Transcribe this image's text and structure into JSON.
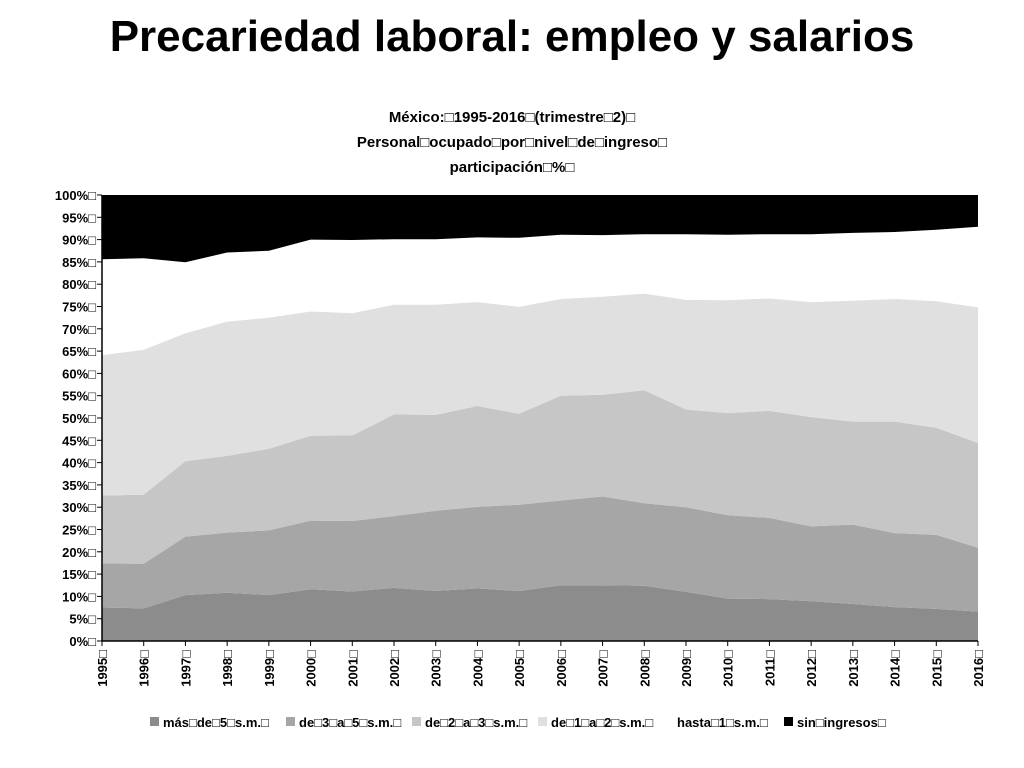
{
  "slide": {
    "title": "Precariedad laboral: empleo y salarios"
  },
  "chart_data": {
    "type": "area",
    "stacked": "percent",
    "title_lines": [
      "México:□1995-2016□(trimestre□2)□",
      "Personal□ocupado□por□nivel□de□ingreso□",
      "participación□%□"
    ],
    "x": [
      "1995□",
      "1996□",
      "1997□",
      "1998□",
      "1999□",
      "2000□",
      "2001□",
      "2002□",
      "2003□",
      "2004□",
      "2005□",
      "2006□",
      "2007□",
      "2008□",
      "2009□",
      "2010□",
      "2011□",
      "2012□",
      "2013□",
      "2014□",
      "2015□",
      "2016□"
    ],
    "y_ticks": [
      "0%□",
      "5%□",
      "10%□",
      "15%□",
      "20%□",
      "25%□",
      "30%□",
      "35%□",
      "40%□",
      "45%□",
      "50%□",
      "55%□",
      "60%□",
      "65%□",
      "70%□",
      "75%□",
      "80%□",
      "85%□",
      "90%□",
      "95%□",
      "100%□"
    ],
    "ylim": [
      0,
      100
    ],
    "series": [
      {
        "name": "más□de□5□s.m.□",
        "color": "#8c8c8c",
        "values": [
          7.5,
          7.3,
          10.3,
          10.8,
          10.3,
          11.6,
          11.1,
          11.9,
          11.2,
          11.8,
          11.2,
          12.5,
          12.5,
          12.4,
          11.0,
          9.5,
          9.4,
          8.9,
          8.3,
          7.6,
          7.2,
          6.6
        ]
      },
      {
        "name": "de□3□a□5□s.m.□",
        "color": "#a6a6a6",
        "values": [
          9.9,
          10.0,
          13.1,
          13.5,
          14.5,
          15.4,
          15.8,
          16.1,
          18.0,
          18.3,
          19.4,
          19.0,
          19.9,
          18.5,
          19.0,
          18.7,
          18.2,
          16.8,
          17.8,
          16.6,
          16.6,
          14.3
        ]
      },
      {
        "name": "de□2□a□3□s.m.□",
        "color": "#c6c6c6",
        "values": [
          15.2,
          15.5,
          16.9,
          17.2,
          18.3,
          19.0,
          19.2,
          22.8,
          21.5,
          22.6,
          20.4,
          23.5,
          22.8,
          25.3,
          21.9,
          22.9,
          24.0,
          24.5,
          23.1,
          25.0,
          24.0,
          23.5
        ]
      },
      {
        "name": "de□1□a□2□s.m.□",
        "color": "#e0e0e0",
        "values": [
          31.6,
          32.6,
          28.8,
          30.2,
          29.5,
          28.0,
          27.5,
          24.7,
          24.8,
          23.4,
          24.1,
          21.8,
          22.1,
          21.8,
          24.7,
          25.4,
          25.3,
          25.9,
          27.2,
          27.6,
          28.5,
          30.5
        ]
      },
      {
        "name": "hasta□1□s.m.□",
        "color": "#ffffff",
        "values": [
          21.4,
          20.4,
          15.8,
          15.4,
          14.9,
          16.0,
          16.3,
          14.6,
          14.6,
          14.4,
          15.4,
          14.3,
          13.7,
          13.2,
          14.6,
          14.6,
          14.3,
          15.1,
          15.1,
          14.9,
          15.9,
          18.0
        ]
      },
      {
        "name": "sin□ingresos□",
        "color": "#000000",
        "values": [
          14.4,
          14.2,
          15.1,
          12.9,
          12.5,
          10.0,
          10.1,
          9.9,
          9.9,
          9.5,
          9.6,
          8.9,
          9.0,
          8.8,
          8.8,
          8.9,
          8.8,
          8.8,
          8.5,
          8.3,
          7.8,
          7.1
        ]
      }
    ],
    "legend_position": "bottom"
  }
}
